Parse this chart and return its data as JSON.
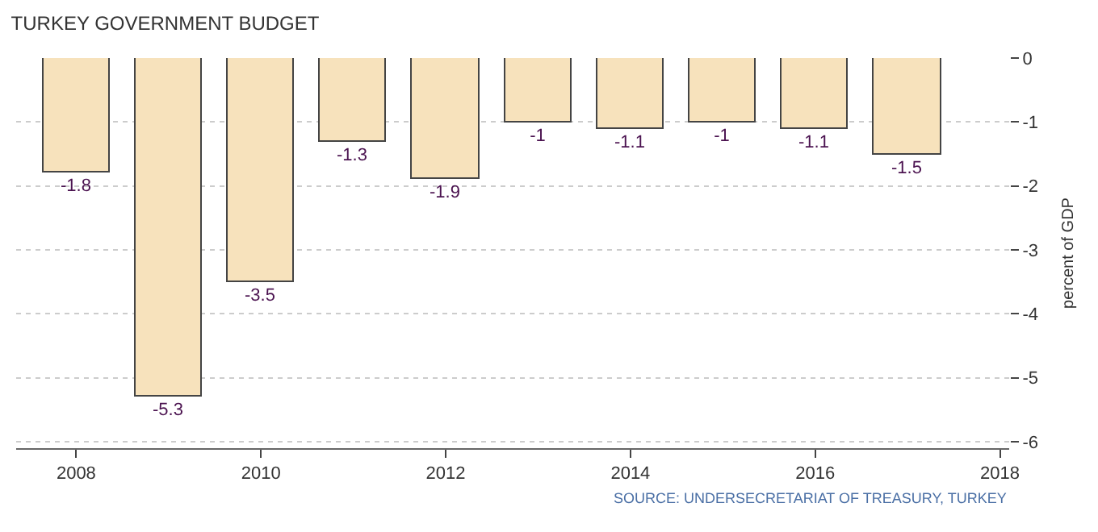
{
  "chart_data": {
    "type": "bar",
    "title": "TURKEY GOVERNMENT BUDGET",
    "ylabel": "percent of GDP",
    "x": [
      2008,
      2009,
      2010,
      2011,
      2012,
      2013,
      2014,
      2015,
      2016,
      2017
    ],
    "values": [
      -1.8,
      -5.3,
      -3.5,
      -1.3,
      -1.9,
      -1,
      -1.1,
      -1,
      -1.1,
      -1.5
    ],
    "color": "#f7e2bc",
    "xlim": [
      2007.35,
      2018.1
    ],
    "xticks": [
      2008,
      2010,
      2012,
      2014,
      2016,
      2018
    ],
    "ylim": [
      -6.1,
      0
    ],
    "yticks": [
      0,
      -1,
      -2,
      -3,
      -4,
      -5,
      -6
    ],
    "grid": "y",
    "data_labels": true,
    "annotations": [
      "SOURCE: UNDERSECRETARIAT OF TREASURY, TURKEY"
    ]
  }
}
